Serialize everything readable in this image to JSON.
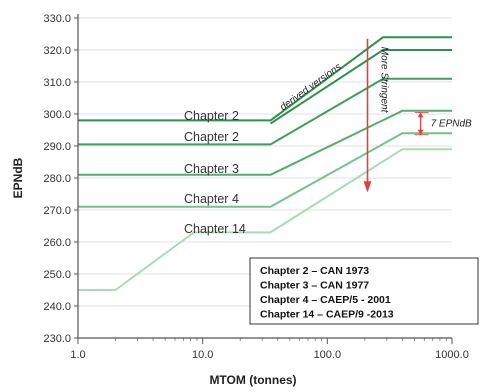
{
  "chart_data": {
    "type": "line",
    "xlabel": "MTOM (tonnes)",
    "ylabel": "EPNdB",
    "xscale": "log",
    "xlim": [
      1.0,
      1000.0
    ],
    "ylim": [
      230.0,
      330.0
    ],
    "xticks": [
      "1.0",
      "10.0",
      "100.0",
      "1000.0"
    ],
    "yticks": [
      "230.0",
      "240.0",
      "250.0",
      "260.0",
      "270.0",
      "280.0",
      "290.0",
      "300.0",
      "310.0",
      "320.0",
      "330.0"
    ],
    "series": [
      {
        "name": "Chapter 2",
        "color": "#2e8f4e",
        "x": [
          1.0,
          35,
          280,
          1000
        ],
        "y": [
          298,
          298,
          324,
          324
        ]
      },
      {
        "name": "derived versions",
        "color": "#2e8f4e",
        "x": [
          35,
          280,
          1000
        ],
        "y": [
          297,
          320,
          320
        ]
      },
      {
        "name": "Chapter 2",
        "color": "#3ea05e",
        "x": [
          1.0,
          35,
          280,
          1000
        ],
        "y": [
          290.5,
          290.5,
          311,
          311
        ]
      },
      {
        "name": "Chapter 3",
        "color": "#52ae6e",
        "x": [
          1.0,
          35,
          400,
          1000
        ],
        "y": [
          281,
          281,
          301,
          301
        ]
      },
      {
        "name": "Chapter 4",
        "color": "#72c28a",
        "x": [
          1.0,
          35,
          400,
          1000
        ],
        "y": [
          271,
          271,
          294,
          294
        ]
      },
      {
        "name": "Chapter 14",
        "color": "#a9dcb6",
        "x": [
          1.0,
          2.0,
          8.5,
          35,
          400,
          1000
        ],
        "y": [
          245,
          245,
          263,
          263,
          289,
          289
        ]
      }
    ],
    "annotations": [
      {
        "text": "derived versions"
      },
      {
        "text": "More Stringent",
        "color": "#e04040"
      },
      {
        "text": "7 EPNdB",
        "color": "#e04040"
      }
    ],
    "legend": {
      "placement": "bottom-right",
      "entries": [
        "Chapter 2 – CAN 1973",
        "Chapter 3 – CAN 1977",
        "Chapter 4 – CAEP/5 - 2001",
        "Chapter 14 – CAEP/9 -2013"
      ]
    }
  }
}
